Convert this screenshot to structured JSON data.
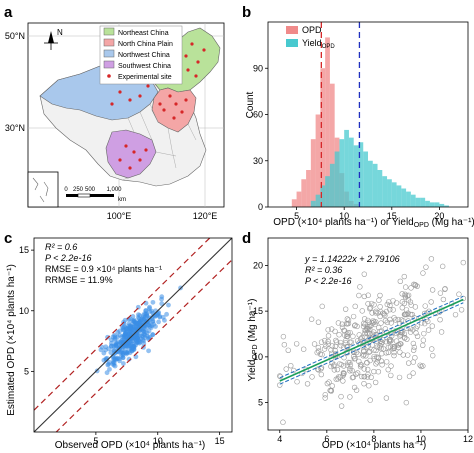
{
  "panels": {
    "a": {
      "letter": "a",
      "lat_labels": [
        "50°N",
        "30°N"
      ],
      "lon_labels": [
        "100°E",
        "120°E"
      ],
      "legend": [
        {
          "label": "Northeast China",
          "color": "#b9e29a"
        },
        {
          "label": "North China Plain",
          "color": "#f4a6a6"
        },
        {
          "label": "Northwest China",
          "color": "#a9c8ec"
        },
        {
          "label": "Southwest China",
          "color": "#cf9fe3"
        },
        {
          "label": "Experimental site",
          "color": "#d62728"
        }
      ],
      "compass_label": "N",
      "scale_labels": [
        "0",
        "250",
        "500",
        "1,000"
      ],
      "scale_unit": "km"
    },
    "b": {
      "letter": "b",
      "ylabel": "Count",
      "xlabel": "OPD (×10⁴ plants ha⁻¹) or Yield",
      "xlabel_sub": "OPD",
      "xlabel_tail": " (Mg ha⁻¹)",
      "legend": [
        {
          "label": "OPD",
          "sub": "",
          "color": "#f08a8a"
        },
        {
          "label": "Yield",
          "sub": "OPD",
          "color": "#48c9cf"
        }
      ]
    },
    "c": {
      "letter": "c",
      "xlabel": "Observed OPD (×10⁴ plants ha⁻¹)",
      "ylabel": "Estimated OPD (×10⁴ plants ha⁻¹)",
      "stats": [
        "R² = 0.6",
        "P < 2.2e-16",
        "RMSE = 0.9 ×10⁴ plants ha⁻¹",
        "RRMSE = 11.9%"
      ]
    },
    "d": {
      "letter": "d",
      "xlabel": "OPD (×10⁴ plants ha⁻¹)",
      "ylabel": "Yield",
      "ylabel_sub": "OPD",
      "ylabel_tail": " (Mg ha⁻¹)",
      "stats": [
        "y = 1.14222x + 2.79106",
        "R² = 0.36",
        "P < 2.2e-16"
      ]
    }
  },
  "colors": {
    "opd": "#f08a8a",
    "yield": "#48c9cf",
    "opd_mean_line": "#d62728",
    "yield_mean_line": "#1f2fbf",
    "scatter_c": "#3a8ee6",
    "fit_d": "#1a9e5a",
    "ci_d": "#1f6fbf",
    "points_d": "#9a9a9a"
  },
  "chart_data": [
    {
      "panel": "b",
      "type": "bar",
      "xlim": [
        2,
        23
      ],
      "ylim": [
        0,
        120
      ],
      "xticks": [
        5,
        10,
        15,
        20
      ],
      "yticks": [
        0,
        30,
        60,
        90
      ],
      "bin_width": 0.5,
      "series": [
        {
          "name": "OPD",
          "bins_start": [
            4.5,
            5,
            5.5,
            6,
            6.5,
            7,
            7.5,
            8,
            8.5,
            9,
            9.5,
            10,
            10.5,
            11
          ],
          "values": [
            5,
            10,
            18,
            24,
            44,
            60,
            90,
            110,
            80,
            45,
            22,
            10,
            4,
            2
          ],
          "mean": 7.6
        },
        {
          "name": "Yield_OPD",
          "bins_start": [
            6.5,
            7,
            7.5,
            8,
            8.5,
            9,
            9.5,
            10,
            10.5,
            11,
            11.5,
            12,
            12.5,
            13,
            13.5,
            14,
            14.5,
            15,
            15.5,
            16,
            16.5,
            17,
            17.5,
            18,
            18.5,
            19,
            19.5,
            20,
            20.5
          ],
          "values": [
            4,
            8,
            14,
            20,
            28,
            36,
            44,
            50,
            45,
            40,
            42,
            36,
            30,
            28,
            24,
            20,
            18,
            16,
            14,
            12,
            10,
            8,
            6,
            6,
            4,
            3,
            3,
            2,
            1
          ],
          "mean": 11.6
        }
      ]
    },
    {
      "panel": "c",
      "type": "scatter",
      "xlim": [
        0,
        16
      ],
      "ylim": [
        0,
        16
      ],
      "xticks": [
        5,
        10,
        15
      ],
      "yticks": [
        5,
        10,
        15
      ],
      "lines": [
        {
          "name": "1:1 line",
          "slope": 1,
          "intercept": 0
        },
        {
          "name": "upper bound",
          "slope": 1,
          "intercept": 1.8
        },
        {
          "name": "lower bound",
          "slope": 1,
          "intercept": -1.8
        }
      ],
      "points": {
        "x_mean": 8,
        "x_sd": 1.1,
        "r": 0.77,
        "noise_sd": 0.85,
        "n": 360
      }
    },
    {
      "panel": "d",
      "type": "scatter",
      "xlim": [
        3.5,
        12
      ],
      "ylim": [
        2,
        23
      ],
      "xticks": [
        4,
        6,
        8,
        10,
        12
      ],
      "yticks": [
        5,
        10,
        15,
        20
      ],
      "fit": {
        "slope": 1.14222,
        "intercept": 2.79106,
        "x_range": [
          4,
          11.8
        ]
      },
      "points": {
        "x_mean": 7.9,
        "x_sd": 1.6,
        "noise_sd": 2.6,
        "n": 420
      }
    }
  ]
}
